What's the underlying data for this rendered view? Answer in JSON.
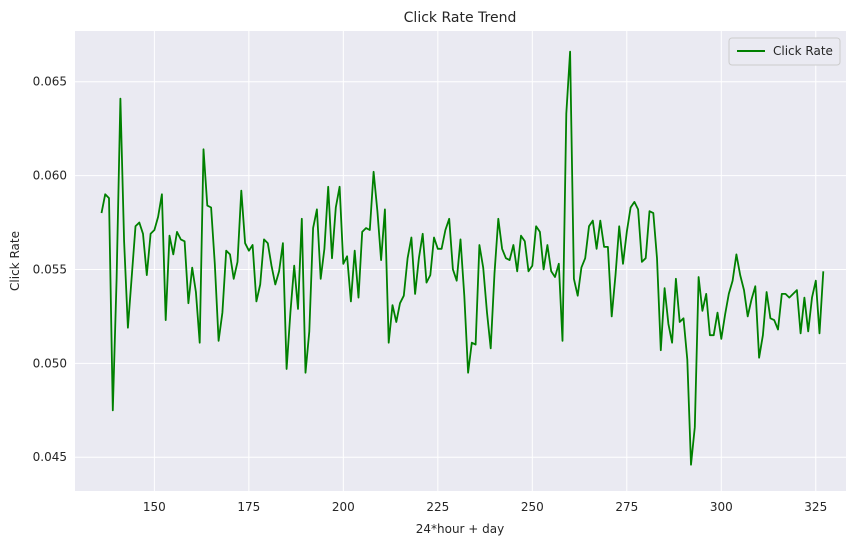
{
  "chart_data": {
    "type": "line",
    "title": "Click Rate Trend",
    "xlabel": "24*hour + day",
    "ylabel": "Click Rate",
    "xlim": [
      129,
      333
    ],
    "ylim": [
      0.0432,
      0.0677
    ],
    "x_ticks": [
      150,
      175,
      200,
      225,
      250,
      275,
      300,
      325
    ],
    "y_ticks": [
      0.045,
      0.05,
      0.055,
      0.06,
      0.065
    ],
    "x_tick_labels": [
      "150",
      "175",
      "200",
      "225",
      "250",
      "275",
      "300",
      "325"
    ],
    "y_tick_labels": [
      "0.045",
      "0.050",
      "0.055",
      "0.060",
      "0.065"
    ],
    "grid": true,
    "legend_position": "top-right",
    "background_color": "#eaeaf2",
    "series": [
      {
        "name": "Click Rate",
        "color": "#008000",
        "x": [
          136,
          137,
          138,
          139,
          140,
          141,
          142,
          143,
          144,
          145,
          146,
          147,
          148,
          149,
          150,
          151,
          152,
          153,
          154,
          155,
          156,
          157,
          158,
          159,
          160,
          161,
          162,
          163,
          164,
          165,
          166,
          167,
          168,
          169,
          170,
          171,
          172,
          173,
          174,
          175,
          176,
          177,
          178,
          179,
          180,
          181,
          182,
          183,
          184,
          185,
          186,
          187,
          188,
          189,
          190,
          191,
          192,
          193,
          194,
          195,
          196,
          197,
          198,
          199,
          200,
          201,
          202,
          203,
          204,
          205,
          206,
          207,
          208,
          209,
          210,
          211,
          212,
          213,
          214,
          215,
          216,
          217,
          218,
          219,
          220,
          221,
          222,
          223,
          224,
          225,
          226,
          227,
          228,
          229,
          230,
          231,
          232,
          233,
          234,
          235,
          236,
          237,
          238,
          239,
          240,
          241,
          242,
          243,
          244,
          245,
          246,
          247,
          248,
          249,
          250,
          251,
          252,
          253,
          254,
          255,
          256,
          257,
          258,
          259,
          260,
          261,
          262,
          263,
          264,
          265,
          266,
          267,
          268,
          269,
          270,
          271,
          272,
          273,
          274,
          275,
          276,
          277,
          278,
          279,
          280,
          281,
          282,
          283,
          284,
          285,
          286,
          287,
          288,
          289,
          290,
          291,
          292,
          293,
          294,
          295,
          296,
          297,
          298,
          299,
          300,
          301,
          302,
          303,
          304,
          305,
          306,
          307,
          308,
          309,
          310,
          311,
          312,
          313,
          314,
          315,
          316,
          317,
          318,
          319,
          320,
          321,
          322,
          323,
          324,
          325,
          326,
          327
        ],
        "values": [
          0.058,
          0.059,
          0.0588,
          0.0475,
          0.0545,
          0.0641,
          0.0565,
          0.0519,
          0.0546,
          0.0573,
          0.0575,
          0.0569,
          0.0547,
          0.0569,
          0.0571,
          0.0578,
          0.059,
          0.0523,
          0.0568,
          0.0558,
          0.057,
          0.0566,
          0.0565,
          0.0532,
          0.0551,
          0.0538,
          0.0511,
          0.0614,
          0.0584,
          0.0583,
          0.0553,
          0.0512,
          0.0527,
          0.056,
          0.0558,
          0.0545,
          0.0554,
          0.0592,
          0.0564,
          0.056,
          0.0563,
          0.0533,
          0.0542,
          0.0566,
          0.0564,
          0.0552,
          0.0542,
          0.0549,
          0.0564,
          0.0497,
          0.0527,
          0.0552,
          0.0529,
          0.0577,
          0.0495,
          0.0517,
          0.0572,
          0.0582,
          0.0545,
          0.0561,
          0.0594,
          0.0556,
          0.0583,
          0.0594,
          0.0553,
          0.0557,
          0.0533,
          0.056,
          0.0535,
          0.057,
          0.0572,
          0.0571,
          0.0602,
          0.0581,
          0.0555,
          0.0582,
          0.0511,
          0.0531,
          0.0522,
          0.0532,
          0.0536,
          0.0556,
          0.0567,
          0.0537,
          0.0556,
          0.0569,
          0.0543,
          0.0547,
          0.0567,
          0.0561,
          0.0561,
          0.0571,
          0.0577,
          0.055,
          0.0544,
          0.0566,
          0.0536,
          0.0495,
          0.0511,
          0.051,
          0.0563,
          0.0551,
          0.0527,
          0.0508,
          0.0548,
          0.0577,
          0.0561,
          0.0556,
          0.0555,
          0.0563,
          0.0549,
          0.0568,
          0.0565,
          0.0549,
          0.0552,
          0.0573,
          0.057,
          0.055,
          0.0563,
          0.0549,
          0.0546,
          0.0553,
          0.0512,
          0.0633,
          0.0666,
          0.0545,
          0.0536,
          0.0551,
          0.0556,
          0.0573,
          0.0576,
          0.0561,
          0.0576,
          0.0562,
          0.0562,
          0.0525,
          0.0547,
          0.0573,
          0.0553,
          0.057,
          0.0583,
          0.0586,
          0.0582,
          0.0554,
          0.0556,
          0.0581,
          0.058,
          0.0556,
          0.0507,
          0.054,
          0.0521,
          0.0511,
          0.0545,
          0.0522,
          0.0524,
          0.0502,
          0.0446,
          0.0466,
          0.0546,
          0.0528,
          0.0537,
          0.0515,
          0.0515,
          0.0527,
          0.0513,
          0.0526,
          0.0537,
          0.0544,
          0.0558,
          0.0547,
          0.0539,
          0.0525,
          0.0534,
          0.0541,
          0.0503,
          0.0515,
          0.0538,
          0.0524,
          0.0523,
          0.0518,
          0.0537,
          0.0537,
          0.0535,
          0.0537,
          0.0539,
          0.0516,
          0.0535,
          0.0517,
          0.0535,
          0.0544,
          0.0516,
          0.0549
        ]
      }
    ]
  }
}
